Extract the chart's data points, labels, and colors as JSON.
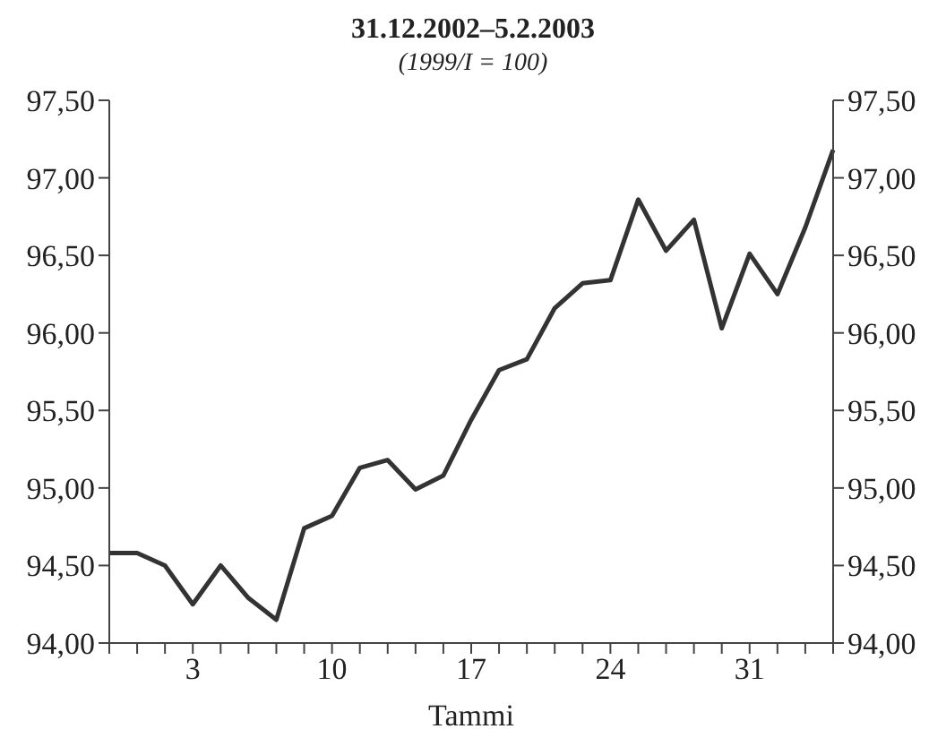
{
  "chart_data": {
    "type": "line",
    "title": "31.12.2002–5.2.2003",
    "subtitle": "(1999/I = 100)",
    "xlabel": "Tammi",
    "categories": [
      null,
      null,
      null,
      "3",
      null,
      null,
      null,
      null,
      "10",
      null,
      null,
      null,
      null,
      "17",
      null,
      null,
      null,
      null,
      "24",
      null,
      null,
      null,
      null,
      "31",
      null,
      null,
      null
    ],
    "series": [
      {
        "color": "#333333",
        "values": [
          94.58,
          94.58,
          94.5,
          94.25,
          94.5,
          94.29,
          94.15,
          94.74,
          94.82,
          95.13,
          95.18,
          94.99,
          95.08,
          95.44,
          95.76,
          95.83,
          96.16,
          96.32,
          96.34,
          96.86,
          96.53,
          96.73,
          96.03,
          96.51,
          96.25,
          96.68,
          97.18
        ]
      }
    ],
    "ylim": [
      94,
      97.5
    ],
    "yticks": [
      {
        "value": 94,
        "label": "94,00"
      },
      {
        "value": 94.5,
        "label": "94,50"
      },
      {
        "value": 95,
        "label": "95,00"
      },
      {
        "value": 95.5,
        "label": "95,50"
      },
      {
        "value": 96,
        "label": "96,00"
      },
      {
        "value": 96.5,
        "label": "96,50"
      },
      {
        "value": 97,
        "label": "97,00"
      },
      {
        "value": 97.5,
        "label": "97,50"
      }
    ],
    "y2lim": [
      94,
      97.5
    ],
    "y2ticks": [
      {
        "value": 94,
        "label": "94,00"
      },
      {
        "value": 94.5,
        "label": "94,50"
      },
      {
        "value": 95,
        "label": "95,00"
      },
      {
        "value": 95.5,
        "label": "95,50"
      },
      {
        "value": 96,
        "label": "96,00"
      },
      {
        "value": 96.5,
        "label": "96,50"
      },
      {
        "value": 97,
        "label": "97,00"
      },
      {
        "value": 97.5,
        "label": "97,50"
      }
    ],
    "grid": false,
    "legend": false,
    "marker": "none",
    "line_style": "solid"
  }
}
